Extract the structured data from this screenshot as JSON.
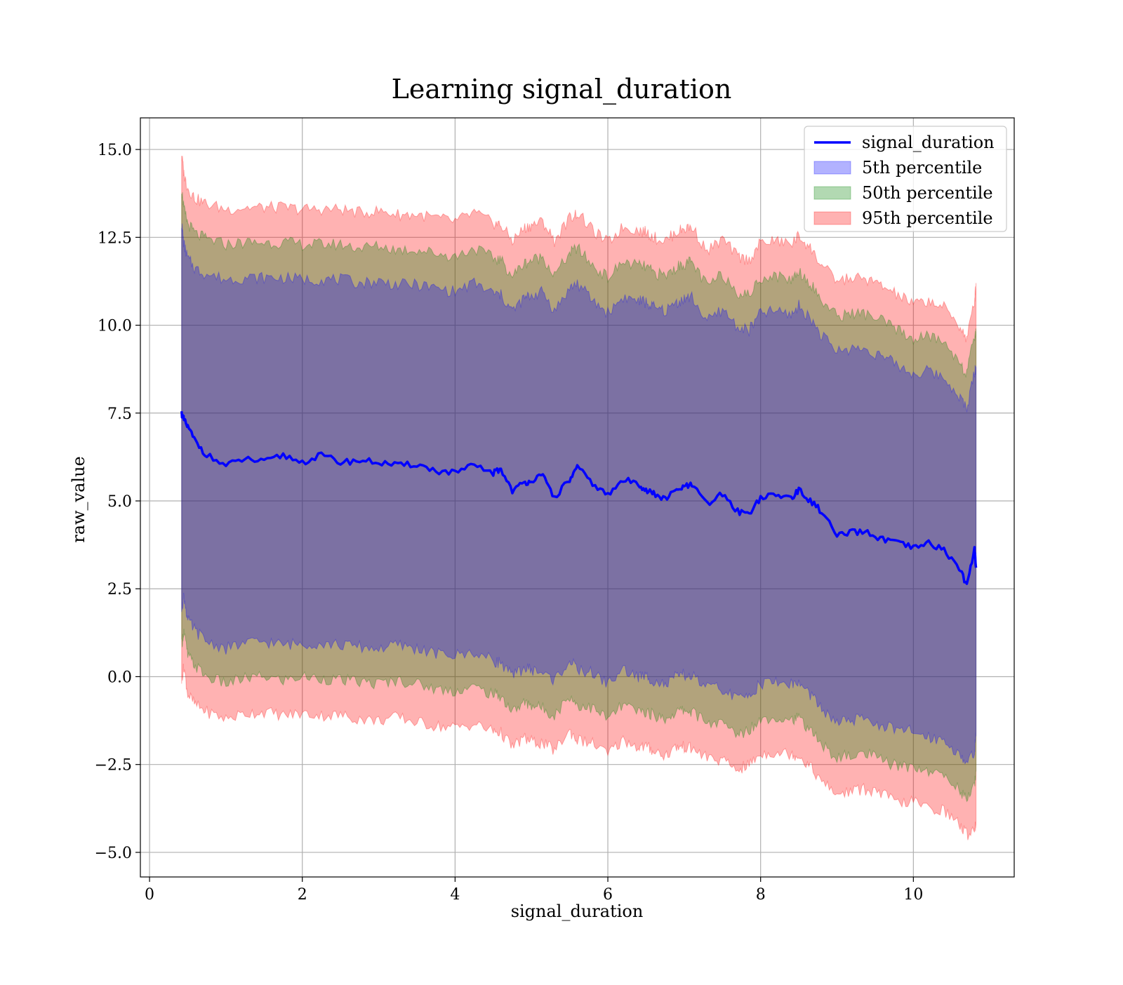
{
  "chart_data": {
    "type": "area",
    "title": "Learning signal_duration",
    "xlabel": "signal_duration",
    "ylabel": "raw_value",
    "xlim": [
      -0.12,
      11.32
    ],
    "ylim": [
      -5.7,
      15.9
    ],
    "x_ticks": [
      0,
      2,
      4,
      6,
      8,
      10
    ],
    "x_tick_labels": [
      "0",
      "2",
      "4",
      "6",
      "8",
      "10"
    ],
    "y_ticks": [
      -5.0,
      -2.5,
      0.0,
      2.5,
      5.0,
      7.5,
      10.0,
      12.5,
      15.0
    ],
    "y_tick_labels": [
      "−5.0",
      "−2.5",
      "0.0",
      "2.5",
      "5.0",
      "7.5",
      "10.0",
      "12.5",
      "15.0"
    ],
    "grid": true,
    "legend_position": "top-right",
    "x": [
      0.42,
      0.45,
      0.5,
      0.6,
      0.75,
      1.0,
      1.25,
      1.5,
      1.75,
      2.0,
      2.25,
      2.5,
      2.75,
      3.0,
      3.25,
      3.5,
      3.75,
      4.0,
      4.25,
      4.5,
      4.6,
      4.75,
      4.9,
      5.0,
      5.15,
      5.3,
      5.5,
      5.6,
      5.8,
      6.0,
      6.2,
      6.4,
      6.5,
      6.6,
      6.75,
      6.9,
      7.0,
      7.1,
      7.3,
      7.5,
      7.7,
      7.85,
      8.0,
      8.2,
      8.4,
      8.5,
      8.65,
      8.8,
      9.0,
      9.2,
      9.4,
      9.6,
      9.8,
      10.0,
      10.2,
      10.4,
      10.6,
      10.7,
      10.8,
      10.82
    ],
    "series": [
      {
        "name": "signal_duration",
        "kind": "line",
        "color": "#0000ff",
        "values": [
          7.5,
          7.3,
          7.1,
          6.7,
          6.3,
          6.0,
          6.2,
          6.1,
          6.3,
          6.1,
          6.3,
          6.1,
          6.15,
          6.1,
          6.0,
          6.05,
          5.85,
          5.8,
          6.0,
          5.8,
          5.9,
          5.3,
          5.5,
          5.6,
          5.7,
          5.1,
          5.6,
          5.95,
          5.5,
          5.15,
          5.6,
          5.5,
          5.3,
          5.2,
          5.05,
          5.3,
          5.4,
          5.45,
          4.9,
          5.2,
          4.7,
          4.65,
          5.1,
          5.15,
          5.1,
          5.3,
          5.0,
          4.7,
          4.0,
          4.1,
          4.1,
          3.9,
          3.8,
          3.65,
          3.8,
          3.6,
          3.1,
          2.6,
          3.6,
          3.1
        ]
      },
      {
        "name": "95th percentile",
        "kind": "band",
        "color": "#ff0000",
        "lower": [
          -0.1,
          0.3,
          -0.5,
          -0.8,
          -1.0,
          -1.2,
          -1.05,
          -1.0,
          -1.1,
          -1.05,
          -1.1,
          -1.1,
          -1.2,
          -1.25,
          -1.15,
          -1.3,
          -1.4,
          -1.45,
          -1.35,
          -1.55,
          -1.6,
          -2.0,
          -1.75,
          -1.85,
          -1.9,
          -2.1,
          -1.55,
          -1.8,
          -1.9,
          -2.2,
          -1.8,
          -2.0,
          -2.0,
          -2.1,
          -2.25,
          -2.0,
          -2.0,
          -2.05,
          -2.3,
          -2.4,
          -2.65,
          -2.5,
          -2.2,
          -2.15,
          -2.2,
          -2.25,
          -2.55,
          -3.0,
          -3.35,
          -3.25,
          -3.2,
          -3.35,
          -3.6,
          -3.55,
          -3.75,
          -3.8,
          -4.2,
          -4.5,
          -4.3,
          -4.2
        ],
        "upper": [
          14.9,
          14.3,
          13.9,
          13.6,
          13.45,
          13.3,
          13.35,
          13.35,
          13.35,
          13.3,
          13.3,
          13.3,
          13.2,
          13.25,
          13.15,
          13.15,
          13.05,
          12.95,
          13.2,
          12.9,
          12.85,
          12.4,
          12.75,
          12.85,
          12.95,
          12.4,
          13.05,
          13.2,
          12.7,
          12.35,
          12.8,
          12.7,
          12.65,
          12.5,
          12.4,
          12.65,
          12.75,
          12.8,
          12.1,
          12.45,
          11.95,
          11.85,
          12.35,
          12.4,
          12.3,
          12.55,
          12.2,
          11.7,
          11.25,
          11.35,
          11.3,
          11.1,
          10.85,
          10.6,
          10.7,
          10.5,
          10.0,
          9.6,
          10.7,
          11.2
        ]
      },
      {
        "name": "50th percentile",
        "kind": "band",
        "color": "#008000",
        "lower": [
          0.9,
          1.3,
          0.6,
          0.3,
          0.0,
          -0.2,
          -0.05,
          0.0,
          -0.1,
          0.0,
          -0.05,
          -0.1,
          -0.15,
          -0.2,
          -0.1,
          -0.2,
          -0.35,
          -0.4,
          -0.3,
          -0.5,
          -0.55,
          -1.0,
          -0.75,
          -0.8,
          -0.9,
          -1.1,
          -0.55,
          -0.8,
          -0.9,
          -1.2,
          -0.8,
          -1.0,
          -1.0,
          -1.1,
          -1.2,
          -1.0,
          -0.95,
          -1.0,
          -1.3,
          -1.35,
          -1.65,
          -1.5,
          -1.2,
          -1.15,
          -1.2,
          -1.2,
          -1.5,
          -1.95,
          -2.3,
          -2.25,
          -2.2,
          -2.4,
          -2.55,
          -2.55,
          -2.7,
          -2.8,
          -3.2,
          -3.5,
          -3.1,
          -2.7
        ]
      },
      {
        "name": "5th percentile",
        "kind": "band",
        "color": "#0000ff",
        "lower": [
          1.9,
          2.3,
          1.6,
          1.3,
          1.0,
          0.8,
          0.95,
          1.0,
          0.9,
          0.95,
          0.95,
          0.9,
          0.85,
          0.8,
          0.9,
          0.8,
          0.65,
          0.6,
          0.7,
          0.45,
          0.4,
          0.0,
          0.25,
          0.2,
          0.1,
          -0.1,
          0.45,
          0.2,
          0.1,
          -0.2,
          0.2,
          0.0,
          0.0,
          -0.1,
          -0.25,
          0.0,
          0.05,
          0.0,
          -0.3,
          -0.35,
          -0.65,
          -0.5,
          -0.2,
          -0.15,
          -0.2,
          -0.2,
          -0.5,
          -0.95,
          -1.3,
          -1.25,
          -1.2,
          -1.4,
          -1.55,
          -1.55,
          -1.7,
          -1.8,
          -2.2,
          -2.5,
          -2.1,
          -1.7
        ]
      }
    ],
    "band_upper_for_50th": [
      13.9,
      13.3,
      12.9,
      12.6,
      12.45,
      12.3,
      12.35,
      12.35,
      12.35,
      12.3,
      12.3,
      12.3,
      12.2,
      12.25,
      12.15,
      12.15,
      12.05,
      11.95,
      12.2,
      11.9,
      11.85,
      11.4,
      11.75,
      11.85,
      11.95,
      11.4,
      12.05,
      12.2,
      11.7,
      11.35,
      11.8,
      11.7,
      11.65,
      11.5,
      11.4,
      11.65,
      11.75,
      11.8,
      11.1,
      11.45,
      10.95,
      10.85,
      11.35,
      11.4,
      11.3,
      11.55,
      11.2,
      10.7,
      10.25,
      10.35,
      10.3,
      10.1,
      9.85,
      9.6,
      9.7,
      9.5,
      9.0,
      8.6,
      9.7,
      9.8
    ],
    "band_upper_for_5th": [
      12.9,
      12.3,
      11.9,
      11.6,
      11.45,
      11.3,
      11.35,
      11.35,
      11.35,
      11.3,
      11.3,
      11.3,
      11.2,
      11.25,
      11.15,
      11.15,
      11.05,
      10.95,
      11.2,
      10.9,
      10.85,
      10.4,
      10.75,
      10.85,
      10.95,
      10.4,
      11.05,
      11.2,
      10.7,
      10.35,
      10.8,
      10.7,
      10.65,
      10.5,
      10.4,
      10.65,
      10.75,
      10.8,
      10.1,
      10.45,
      9.95,
      9.85,
      10.35,
      10.4,
      10.3,
      10.55,
      10.2,
      9.7,
      9.25,
      9.35,
      9.3,
      9.1,
      8.85,
      8.6,
      8.7,
      8.5,
      8.0,
      7.6,
      8.7,
      8.8
    ],
    "legend": [
      {
        "label": "signal_duration",
        "kind": "line",
        "color": "#0000ff"
      },
      {
        "label": "5th percentile",
        "kind": "band",
        "color": "#0000ff"
      },
      {
        "label": "50th percentile",
        "kind": "band",
        "color": "#008000"
      },
      {
        "label": "95th percentile",
        "kind": "band",
        "color": "#ff0000"
      }
    ]
  }
}
